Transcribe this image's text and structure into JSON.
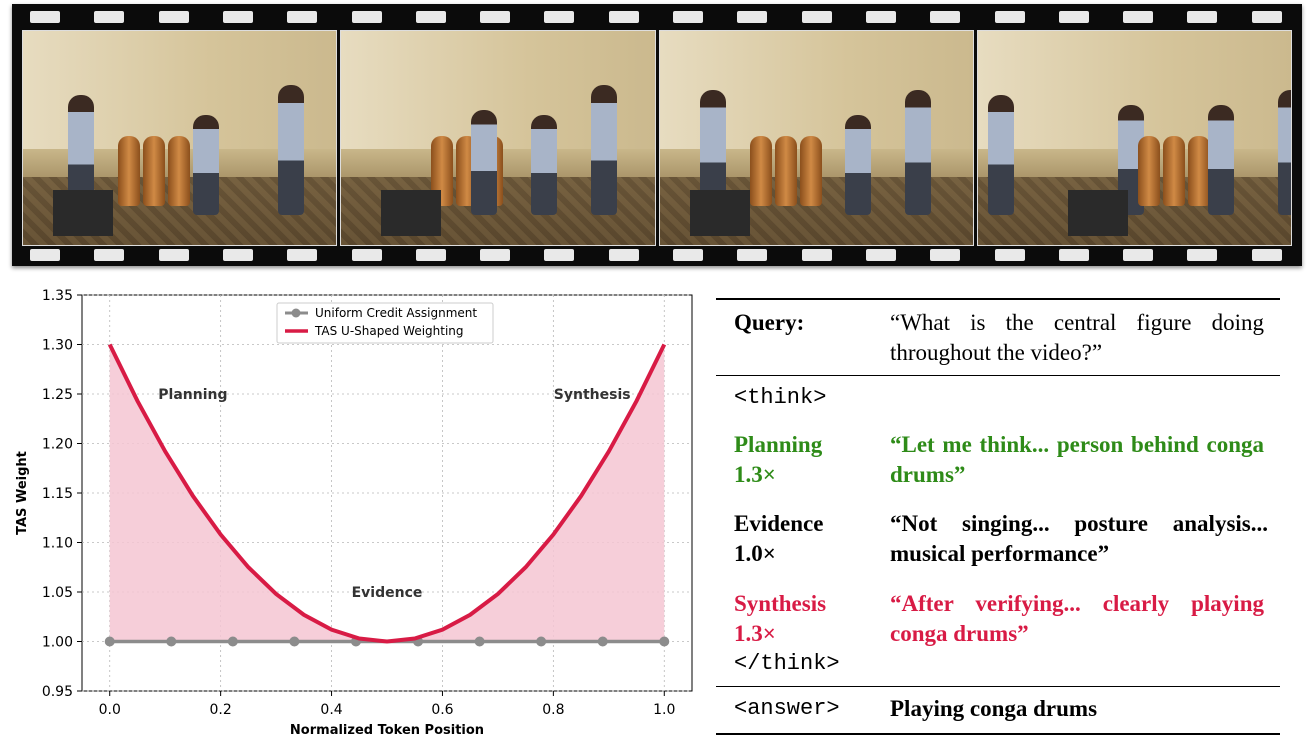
{
  "figure": {
    "frame_count": 4
  },
  "chart_data": {
    "type": "line",
    "xlabel": "Normalized Token Position",
    "ylabel": "TAS Weight",
    "xlim": [
      -0.05,
      1.05
    ],
    "ylim": [
      0.95,
      1.35
    ],
    "x_ticks": [
      0.0,
      0.2,
      0.4,
      0.6,
      0.8,
      1.0
    ],
    "x_tick_labels": [
      "0.0",
      "0.2",
      "0.4",
      "0.6",
      "0.8",
      "1.0"
    ],
    "y_ticks": [
      0.95,
      1.0,
      1.05,
      1.1,
      1.15,
      1.2,
      1.25,
      1.3,
      1.35
    ],
    "y_tick_labels": [
      "0.95",
      "1.00",
      "1.05",
      "1.10",
      "1.15",
      "1.20",
      "1.25",
      "1.30",
      "1.35"
    ],
    "grid": true,
    "legend_position": "top-center",
    "series": [
      {
        "name": "Uniform Credit Assignment",
        "color": "#8c8c8c",
        "x": [
          0.0,
          0.111,
          0.222,
          0.333,
          0.444,
          0.556,
          0.667,
          0.778,
          0.889,
          1.0
        ],
        "y": [
          1.0,
          1.0,
          1.0,
          1.0,
          1.0,
          1.0,
          1.0,
          1.0,
          1.0,
          1.0
        ]
      },
      {
        "name": "TAS U-Shaped Weighting",
        "color": "#d81b45",
        "x": [
          0.0,
          0.05,
          0.1,
          0.15,
          0.2,
          0.25,
          0.3,
          0.35,
          0.4,
          0.45,
          0.5,
          0.55,
          0.6,
          0.65,
          0.7,
          0.75,
          0.8,
          0.85,
          0.9,
          0.95,
          1.0
        ],
        "y": [
          1.3,
          1.243,
          1.192,
          1.147,
          1.108,
          1.075,
          1.048,
          1.027,
          1.012,
          1.003,
          1.0,
          1.003,
          1.012,
          1.027,
          1.048,
          1.075,
          1.108,
          1.147,
          1.192,
          1.243,
          1.3
        ]
      }
    ],
    "fill_color": "#f4c6d2",
    "annotations": [
      {
        "text": "Planning",
        "x": 0.15,
        "y": 1.25
      },
      {
        "text": "Evidence",
        "x": 0.5,
        "y": 1.05
      },
      {
        "text": "Synthesis",
        "x": 0.87,
        "y": 1.25
      }
    ]
  },
  "panel": {
    "query_label": "Query:",
    "query_text": "“What is the central figure doing throughout the video?”",
    "think_open": "<think>",
    "planning_label": "Planning",
    "planning_weight": "1.3×",
    "planning_text": "“Let me think... person behind conga drums”",
    "evidence_label": "Evidence",
    "evidence_weight": "1.0×",
    "evidence_text": "“Not singing... posture analysis... musical performance”",
    "synthesis_label": "Synthesis",
    "synthesis_weight": "1.3×",
    "synthesis_text": "“After verifying... clearly playing conga drums”",
    "think_close": "</think>",
    "answer_tag": "<answer>",
    "answer_text": "Playing conga drums",
    "colors": {
      "planning": "#2e8b18",
      "evidence": "#000000",
      "synthesis": "#d81b45"
    }
  }
}
